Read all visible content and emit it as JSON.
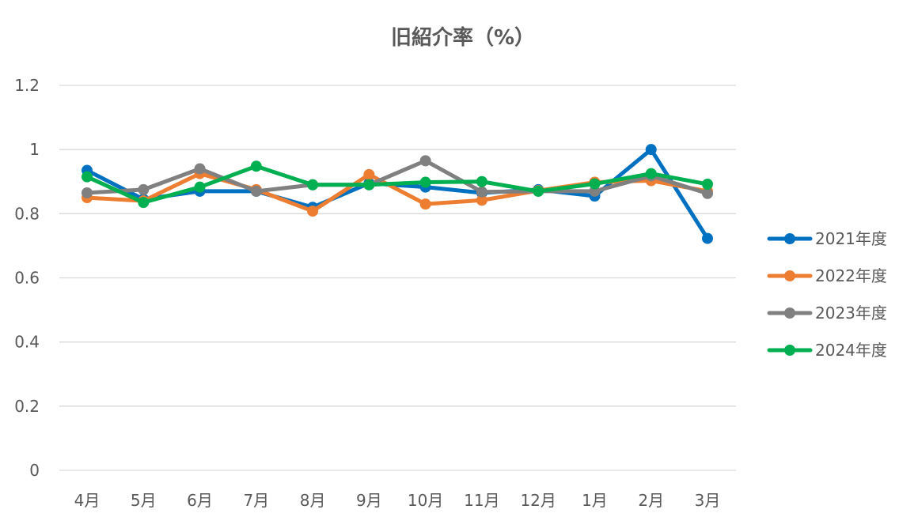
{
  "chart_data": {
    "type": "line",
    "title": "旧紹介率（%）",
    "xlabel": "",
    "ylabel": "",
    "categories": [
      "4月",
      "5月",
      "6月",
      "7月",
      "8月",
      "9月",
      "10月",
      "11月",
      "12月",
      "1月",
      "2月",
      "3月"
    ],
    "ylim": [
      0,
      1.2
    ],
    "yticks": [
      "0",
      "0.2",
      "0.4",
      "0.6",
      "0.8",
      "1",
      "1.2"
    ],
    "ytick_values": [
      0,
      0.2,
      0.4,
      0.6,
      0.8,
      1.0,
      1.2
    ],
    "grid": true,
    "legend_position": "right",
    "series": [
      {
        "name": "2021年度",
        "color": "#0070C0",
        "values": [
          0.935,
          0.845,
          0.87,
          0.87,
          0.82,
          0.895,
          0.883,
          0.865,
          0.875,
          0.855,
          1.0,
          0.723
        ]
      },
      {
        "name": "2022年度",
        "color": "#ED7D31",
        "values": [
          0.85,
          0.84,
          0.925,
          0.875,
          0.808,
          0.922,
          0.83,
          0.842,
          0.872,
          0.898,
          0.903,
          0.87
        ]
      },
      {
        "name": "2023年度",
        "color": "#808080",
        "values": [
          0.865,
          0.875,
          0.94,
          0.87,
          0.89,
          0.89,
          0.965,
          0.868,
          0.87,
          0.87,
          0.918,
          0.863
        ]
      },
      {
        "name": "2024年度",
        "color": "#00B050",
        "values": [
          0.915,
          0.835,
          0.883,
          0.948,
          0.89,
          0.89,
          0.898,
          0.9,
          0.87,
          0.893,
          0.925,
          0.892
        ]
      }
    ]
  }
}
